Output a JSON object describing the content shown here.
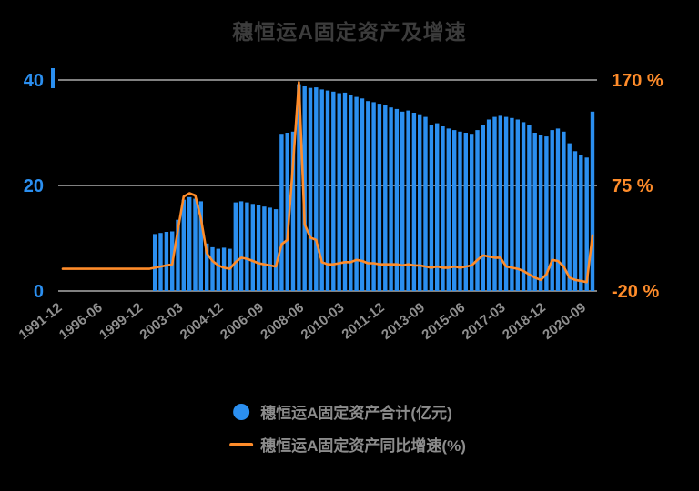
{
  "title": "穗恒运A固定资产及增速",
  "colors": {
    "background": "#000000",
    "bar": "#2b8ff0",
    "line": "#ff8c2a",
    "grid": "#ffffff",
    "title": "#3c3c3c",
    "x_tick_label": "#8f8f8f",
    "legend_text": "#8c8c8c"
  },
  "chart_data": {
    "type": "combo-bar-line",
    "title": "穗恒运A固定资产及增速",
    "legend_position": "bottom",
    "grid": true,
    "left_axis": {
      "range": [
        0,
        40
      ],
      "color": "#2b8ff0",
      "ticks": [
        {
          "value": 40,
          "label": "40"
        },
        {
          "value": 20,
          "label": "20"
        },
        {
          "value": 0,
          "label": "0"
        }
      ]
    },
    "right_axis": {
      "range": [
        -20,
        170
      ],
      "color": "#ff8c2a",
      "ticks": [
        {
          "value": 170,
          "label": "170 %"
        },
        {
          "value": 75,
          "label": "75 %"
        },
        {
          "value": -20,
          "label": "-20 %"
        }
      ]
    },
    "x_ticks": [
      {
        "index": 0,
        "label": "1991-12"
      },
      {
        "index": 7,
        "label": "1996-06"
      },
      {
        "index": 14,
        "label": "1999-12"
      },
      {
        "index": 21,
        "label": "2003-03"
      },
      {
        "index": 28,
        "label": "2004-12"
      },
      {
        "index": 35,
        "label": "2006-09"
      },
      {
        "index": 42,
        "label": "2008-06"
      },
      {
        "index": 49,
        "label": "2010-03"
      },
      {
        "index": 56,
        "label": "2011-12"
      },
      {
        "index": 63,
        "label": "2013-09"
      },
      {
        "index": 70,
        "label": "2015-06"
      },
      {
        "index": 77,
        "label": "2017-03"
      },
      {
        "index": 84,
        "label": "2018-12"
      },
      {
        "index": 91,
        "label": "2020-09"
      }
    ],
    "series": [
      {
        "name": "穗恒运A固定资产合计(亿元)",
        "type": "bar",
        "axis": "left",
        "color": "#2b8ff0",
        "values": [
          null,
          null,
          null,
          null,
          null,
          null,
          null,
          null,
          null,
          null,
          null,
          null,
          null,
          null,
          null,
          null,
          10.8,
          11,
          11.2,
          11.3,
          13.5,
          17.3,
          17.8,
          17.5,
          17,
          9,
          8.3,
          8,
          8.2,
          8,
          16.8,
          17,
          16.8,
          16.5,
          16.2,
          16,
          15.8,
          15.5,
          29.8,
          30,
          30.2,
          39.2,
          38.8,
          38.5,
          38.6,
          38.2,
          38,
          37.8,
          37.5,
          37.6,
          37.2,
          36.8,
          36.5,
          36,
          35.8,
          35.5,
          35.2,
          34.8,
          34.5,
          34,
          34.2,
          33.8,
          33.5,
          33,
          31.5,
          31.8,
          31.2,
          30.8,
          30.5,
          30.2,
          30,
          29.8,
          30.5,
          31.5,
          32.5,
          33,
          33.2,
          33,
          32.8,
          32.5,
          32,
          31.5,
          30,
          29.5,
          29.3,
          30.5,
          30.8,
          30.2,
          28,
          26.5,
          25.8,
          25.3,
          34
        ]
      },
      {
        "name": "穗恒运A固定资产同比增速(%)",
        "type": "line",
        "axis": "right",
        "color": "#ff8c2a",
        "values": [
          0,
          0,
          0,
          0,
          0,
          0,
          0,
          0,
          0,
          0,
          0,
          0,
          0,
          0,
          0,
          0,
          1,
          2,
          3,
          4,
          35,
          65,
          68,
          66,
          45,
          14,
          7,
          3,
          1,
          0,
          6,
          10,
          9,
          7,
          5,
          4,
          3,
          2,
          22,
          26,
          95,
          168,
          40,
          28,
          26,
          6,
          4,
          4,
          5,
          6,
          6,
          8,
          7,
          5,
          5,
          4,
          4,
          4,
          4,
          3,
          4,
          3,
          3,
          2,
          1,
          2,
          1,
          1,
          2,
          1,
          2,
          3,
          8,
          12,
          11,
          10,
          10,
          2,
          1,
          0,
          -2,
          -5,
          -8,
          -10,
          -5,
          8,
          7,
          2,
          -8,
          -10,
          -11,
          -12,
          30
        ]
      }
    ]
  }
}
